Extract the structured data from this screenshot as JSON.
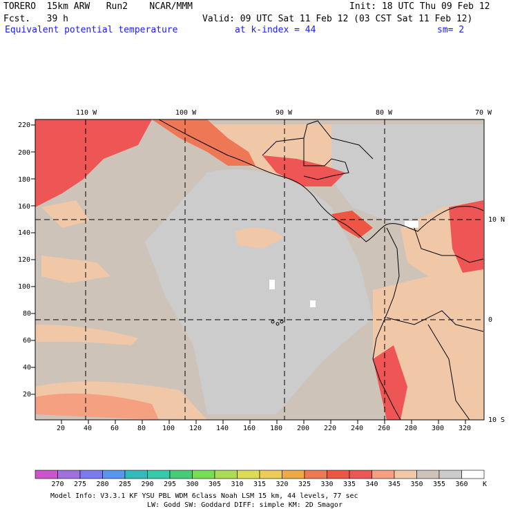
{
  "header": {
    "model": "TORERO",
    "resolution": "15km ARW",
    "run": "Run2",
    "org": "NCAR/MMM",
    "init": "Init: 18 UTC Thu 09 Feb 12",
    "fcst_label": "Fcst.",
    "fcst_hours": "39 h",
    "valid": "Valid: 09 UTC Sat 11 Feb 12 (03 CST Sat 11 Feb 12)",
    "field": "Equivalent potential temperature",
    "level": "at k-index =  44",
    "smoothing": "sm= 2"
  },
  "map": {
    "top_lon_labels": [
      "110 W",
      "100 W",
      "90 W",
      "80 W",
      "70 W"
    ],
    "right_lat_labels": [
      "10 N",
      "0",
      "10 S"
    ],
    "y_ticks": [
      "220",
      "200",
      "180",
      "160",
      "140",
      "120",
      "100",
      "80",
      "60",
      "40",
      "20"
    ],
    "x_ticks": [
      "20",
      "40",
      "60",
      "80",
      "100",
      "120",
      "140",
      "160",
      "180",
      "200",
      "220",
      "240",
      "260",
      "280",
      "300",
      "320"
    ]
  },
  "colorbar": {
    "labels": [
      "270",
      "275",
      "280",
      "285",
      "290",
      "295",
      "300",
      "305",
      "310",
      "315",
      "320",
      "325",
      "330",
      "335",
      "340",
      "345",
      "350",
      "355",
      "360"
    ],
    "unit": "K",
    "colors": [
      "#cc55cc",
      "#a070dd",
      "#7b7bee",
      "#5a96ee",
      "#33bbbb",
      "#33ccaa",
      "#44cc77",
      "#77dd55",
      "#aadd55",
      "#dddd55",
      "#eecc55",
      "#eeaa44",
      "#ee7755",
      "#ee5544",
      "#ee5555",
      "#f5a080",
      "#f0c8a8",
      "#cdc3b8",
      "#cccccc",
      "#ffffff"
    ]
  },
  "footer": {
    "line1": "Model Info: V3.3.1   KF     YSU PBL  WDM 6class  Noah LSM  15 km,   44 levels,   77 sec",
    "line2": "LW: Godd SW: Goddard DIFF: simple KM: 2D Smagor"
  }
}
